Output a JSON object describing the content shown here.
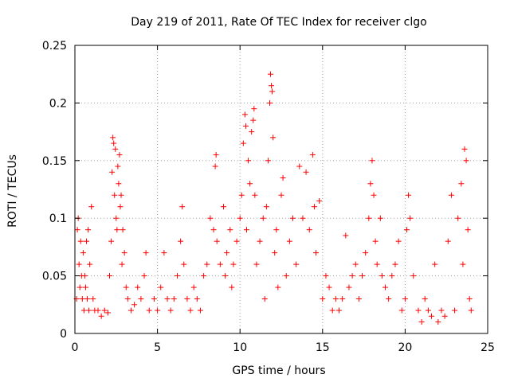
{
  "chart_data": {
    "type": "scatter",
    "title": "Day 219 of 2011, Rate Of TEC Index for receiver clgo",
    "xlabel": "GPS time / hours",
    "ylabel": "ROTI / TECUs",
    "xlim": [
      0,
      25
    ],
    "ylim": [
      0,
      0.25
    ],
    "xticks": [
      0,
      5,
      10,
      15,
      20,
      25
    ],
    "xtick_labels": [
      "0",
      "5",
      "10",
      "15",
      "20",
      "25"
    ],
    "yticks": [
      0,
      0.05,
      0.1,
      0.15,
      0.2,
      0.25
    ],
    "ytick_labels": [
      "0",
      "0.05",
      "0.1",
      "0.15",
      "0.2",
      "0.25"
    ],
    "grid": true,
    "marker": "+",
    "marker_color": "#ff0000",
    "series": [
      {
        "name": "ROTI",
        "points": [
          [
            0.1,
            0.03
          ],
          [
            0.15,
            0.09
          ],
          [
            0.2,
            0.1
          ],
          [
            0.25,
            0.06
          ],
          [
            0.3,
            0.04
          ],
          [
            0.35,
            0.08
          ],
          [
            0.4,
            0.05
          ],
          [
            0.45,
            0.03
          ],
          [
            0.5,
            0.07
          ],
          [
            0.55,
            0.02
          ],
          [
            0.6,
            0.05
          ],
          [
            0.65,
            0.04
          ],
          [
            0.7,
            0.08
          ],
          [
            0.75,
            0.03
          ],
          [
            0.8,
            0.09
          ],
          [
            0.85,
            0.02
          ],
          [
            0.9,
            0.06
          ],
          [
            1.0,
            0.11
          ],
          [
            1.1,
            0.03
          ],
          [
            1.2,
            0.02
          ],
          [
            1.4,
            0.02
          ],
          [
            1.6,
            0.015
          ],
          [
            1.8,
            0.02
          ],
          [
            2.0,
            0.018
          ],
          [
            2.1,
            0.05
          ],
          [
            2.2,
            0.08
          ],
          [
            2.25,
            0.14
          ],
          [
            2.3,
            0.17
          ],
          [
            2.35,
            0.165
          ],
          [
            2.4,
            0.12
          ],
          [
            2.45,
            0.16
          ],
          [
            2.5,
            0.1
          ],
          [
            2.55,
            0.09
          ],
          [
            2.6,
            0.145
          ],
          [
            2.65,
            0.13
          ],
          [
            2.7,
            0.155
          ],
          [
            2.75,
            0.11
          ],
          [
            2.8,
            0.12
          ],
          [
            2.85,
            0.06
          ],
          [
            2.9,
            0.09
          ],
          [
            3.0,
            0.07
          ],
          [
            3.1,
            0.04
          ],
          [
            3.2,
            0.03
          ],
          [
            3.4,
            0.02
          ],
          [
            3.6,
            0.025
          ],
          [
            3.8,
            0.04
          ],
          [
            4.0,
            0.03
          ],
          [
            4.2,
            0.05
          ],
          [
            4.3,
            0.07
          ],
          [
            4.5,
            0.02
          ],
          [
            4.8,
            0.03
          ],
          [
            5.0,
            0.02
          ],
          [
            5.2,
            0.04
          ],
          [
            5.4,
            0.07
          ],
          [
            5.6,
            0.03
          ],
          [
            5.8,
            0.02
          ],
          [
            6.0,
            0.03
          ],
          [
            6.2,
            0.05
          ],
          [
            6.4,
            0.08
          ],
          [
            6.5,
            0.11
          ],
          [
            6.6,
            0.06
          ],
          [
            6.8,
            0.03
          ],
          [
            7.0,
            0.02
          ],
          [
            7.2,
            0.04
          ],
          [
            7.4,
            0.03
          ],
          [
            7.6,
            0.02
          ],
          [
            7.8,
            0.05
          ],
          [
            8.0,
            0.06
          ],
          [
            8.2,
            0.1
          ],
          [
            8.4,
            0.09
          ],
          [
            8.5,
            0.145
          ],
          [
            8.55,
            0.155
          ],
          [
            8.6,
            0.08
          ],
          [
            8.8,
            0.06
          ],
          [
            9.0,
            0.11
          ],
          [
            9.1,
            0.05
          ],
          [
            9.2,
            0.07
          ],
          [
            9.4,
            0.09
          ],
          [
            9.5,
            0.04
          ],
          [
            9.6,
            0.06
          ],
          [
            9.8,
            0.08
          ],
          [
            10.0,
            0.1
          ],
          [
            10.1,
            0.12
          ],
          [
            10.2,
            0.165
          ],
          [
            10.3,
            0.19
          ],
          [
            10.35,
            0.18
          ],
          [
            10.4,
            0.09
          ],
          [
            10.5,
            0.15
          ],
          [
            10.6,
            0.13
          ],
          [
            10.7,
            0.175
          ],
          [
            10.8,
            0.185
          ],
          [
            10.85,
            0.195
          ],
          [
            10.9,
            0.12
          ],
          [
            11.0,
            0.06
          ],
          [
            11.2,
            0.08
          ],
          [
            11.4,
            0.1
          ],
          [
            11.5,
            0.03
          ],
          [
            11.6,
            0.11
          ],
          [
            11.7,
            0.15
          ],
          [
            11.8,
            0.2
          ],
          [
            11.85,
            0.225
          ],
          [
            11.9,
            0.215
          ],
          [
            11.95,
            0.21
          ],
          [
            12.0,
            0.17
          ],
          [
            12.1,
            0.07
          ],
          [
            12.2,
            0.09
          ],
          [
            12.3,
            0.04
          ],
          [
            12.5,
            0.12
          ],
          [
            12.6,
            0.135
          ],
          [
            12.8,
            0.05
          ],
          [
            13.0,
            0.08
          ],
          [
            13.2,
            0.1
          ],
          [
            13.4,
            0.06
          ],
          [
            13.6,
            0.145
          ],
          [
            13.8,
            0.1
          ],
          [
            14.0,
            0.14
          ],
          [
            14.2,
            0.09
          ],
          [
            14.4,
            0.155
          ],
          [
            14.5,
            0.11
          ],
          [
            14.6,
            0.07
          ],
          [
            14.8,
            0.115
          ],
          [
            15.0,
            0.03
          ],
          [
            15.2,
            0.05
          ],
          [
            15.4,
            0.04
          ],
          [
            15.6,
            0.02
          ],
          [
            15.8,
            0.03
          ],
          [
            16.0,
            0.02
          ],
          [
            16.2,
            0.03
          ],
          [
            16.4,
            0.085
          ],
          [
            16.6,
            0.04
          ],
          [
            16.8,
            0.05
          ],
          [
            17.0,
            0.06
          ],
          [
            17.2,
            0.03
          ],
          [
            17.4,
            0.05
          ],
          [
            17.6,
            0.07
          ],
          [
            17.8,
            0.1
          ],
          [
            17.9,
            0.13
          ],
          [
            18.0,
            0.15
          ],
          [
            18.1,
            0.12
          ],
          [
            18.2,
            0.08
          ],
          [
            18.3,
            0.06
          ],
          [
            18.5,
            0.1
          ],
          [
            18.6,
            0.05
          ],
          [
            18.8,
            0.04
          ],
          [
            19.0,
            0.03
          ],
          [
            19.2,
            0.05
          ],
          [
            19.4,
            0.06
          ],
          [
            19.6,
            0.08
          ],
          [
            19.8,
            0.02
          ],
          [
            20.0,
            0.03
          ],
          [
            20.1,
            0.09
          ],
          [
            20.2,
            0.12
          ],
          [
            20.3,
            0.1
          ],
          [
            20.5,
            0.05
          ],
          [
            20.8,
            0.02
          ],
          [
            21.0,
            0.01
          ],
          [
            21.2,
            0.03
          ],
          [
            21.4,
            0.02
          ],
          [
            21.6,
            0.015
          ],
          [
            21.8,
            0.06
          ],
          [
            22.0,
            0.01
          ],
          [
            22.2,
            0.02
          ],
          [
            22.4,
            0.015
          ],
          [
            22.6,
            0.08
          ],
          [
            22.8,
            0.12
          ],
          [
            23.0,
            0.02
          ],
          [
            23.2,
            0.1
          ],
          [
            23.4,
            0.13
          ],
          [
            23.5,
            0.06
          ],
          [
            23.6,
            0.16
          ],
          [
            23.7,
            0.15
          ],
          [
            23.8,
            0.09
          ],
          [
            23.9,
            0.03
          ],
          [
            24.0,
            0.02
          ]
        ]
      }
    ]
  }
}
